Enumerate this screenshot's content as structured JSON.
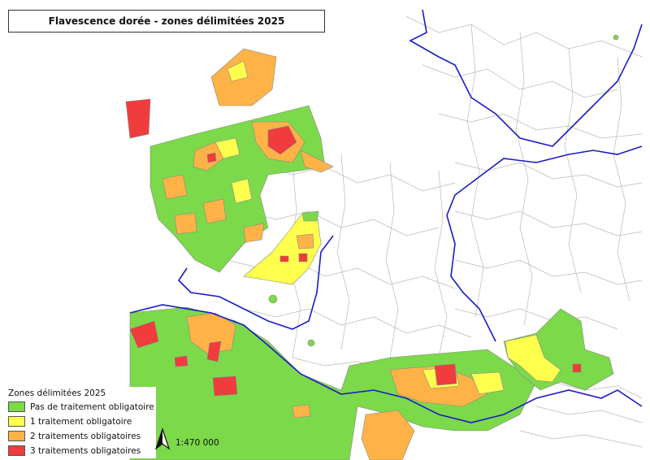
{
  "title": "Flavescence dorée - zones délimitées 2025",
  "legend": {
    "title": "Zones délimitées 2025",
    "items": [
      {
        "label": "Pas de traitement obligatoire",
        "color": "#7cd94a"
      },
      {
        "label": "1 traitement obligatoire",
        "color": "#ffff4d"
      },
      {
        "label": "2 traitements obligatoires",
        "color": "#ffb347"
      },
      {
        "label": "3 traitements obligatoires",
        "color": "#f03c3c"
      }
    ]
  },
  "scale": "1:470 000",
  "colors": {
    "commune_border": "#b0b0b0",
    "department_border": "#1a1ac8",
    "background": "#ffffff"
  },
  "icons": {
    "north_arrow": "north-arrow-icon"
  }
}
